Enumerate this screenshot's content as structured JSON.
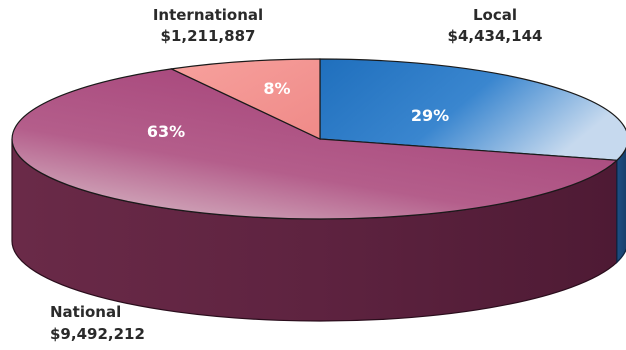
{
  "chart_data": {
    "type": "pie",
    "style": "3d",
    "slices": [
      {
        "name": "Local",
        "value": 4434144,
        "value_label": "$4,434,144",
        "percent_label": "29%",
        "color": "#2a78c4"
      },
      {
        "name": "National",
        "value": 9492212,
        "value_label": "$9,492,212",
        "percent_label": "63%",
        "color": "#a9497c"
      },
      {
        "name": "International",
        "value": 1211887,
        "value_label": "$1,211,887",
        "percent_label": "8%",
        "color": "#f3928f"
      }
    ]
  }
}
